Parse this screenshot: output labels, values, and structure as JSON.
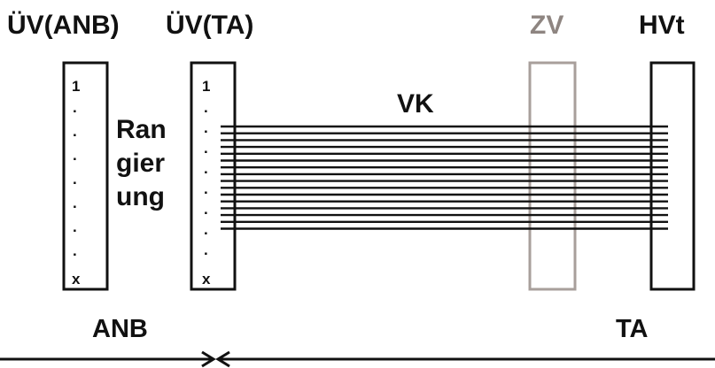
{
  "labels": {
    "uev_anb": "ÜV(ANB)",
    "uev_ta": "ÜV(TA)",
    "zv": "ZV",
    "hvt": "HVt",
    "vk": "VK",
    "rangierung": [
      "Ran",
      "gier",
      "ung"
    ],
    "anb": "ANB",
    "ta": "TA"
  },
  "panel_left": {
    "first": "1",
    "dots": [
      ".",
      ".",
      ".",
      ".",
      ".",
      ".",
      "."
    ],
    "last": "x"
  },
  "panel_right": {
    "first": "1",
    "dots": [
      ".",
      ".",
      ".",
      ".",
      ".",
      ".",
      ".",
      "."
    ],
    "last": "x"
  },
  "cable": {
    "line_count": 16
  },
  "colors": {
    "frame": "#111111",
    "zv_frame": "#a89f9b",
    "zv_text": "#8e8581"
  }
}
